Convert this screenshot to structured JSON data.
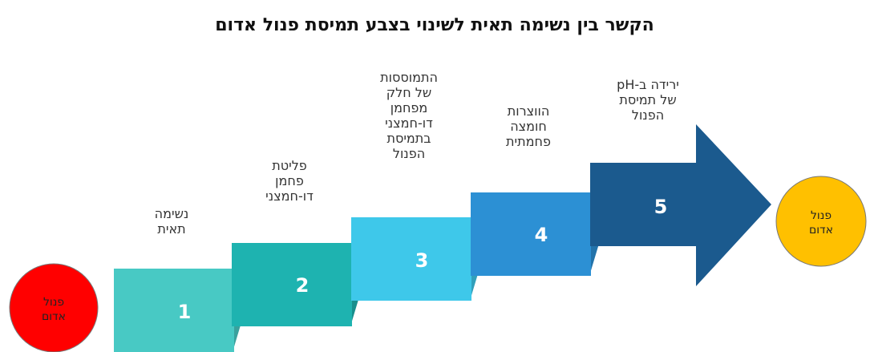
{
  "title": "הקשר בין נשימה תאית לשינוי בצבע תמיסת פנול אדום",
  "start_node": {
    "lines": [
      "פנול",
      "אדום"
    ],
    "color": "#ff0000"
  },
  "end_node": {
    "lines": [
      "פנול",
      "אדום"
    ],
    "color": "#ffc000"
  },
  "steps": [
    {
      "number": "1",
      "label_lines": [
        "נשימה",
        "תאית"
      ],
      "color": "#48c9c4"
    },
    {
      "number": "2",
      "label_lines": [
        "פליטת",
        "פחמן",
        "דו-חמצני"
      ],
      "color": "#1eb3b0"
    },
    {
      "number": "3",
      "label_lines": [
        "התמוססות",
        "של חלק",
        "מפחמן",
        "דו-חמצני",
        "בתמיסת",
        "הפנול"
      ],
      "color": "#3ec8ea"
    },
    {
      "number": "4",
      "label_lines": [
        "הווצרות",
        "חומצה",
        "פחמתית"
      ],
      "color": "#2c90d4"
    },
    {
      "number": "5",
      "label_lines": [
        "ירידה ב-pH",
        "של תמיסת",
        "הפנול"
      ],
      "color": "#1b5a8e"
    }
  ]
}
